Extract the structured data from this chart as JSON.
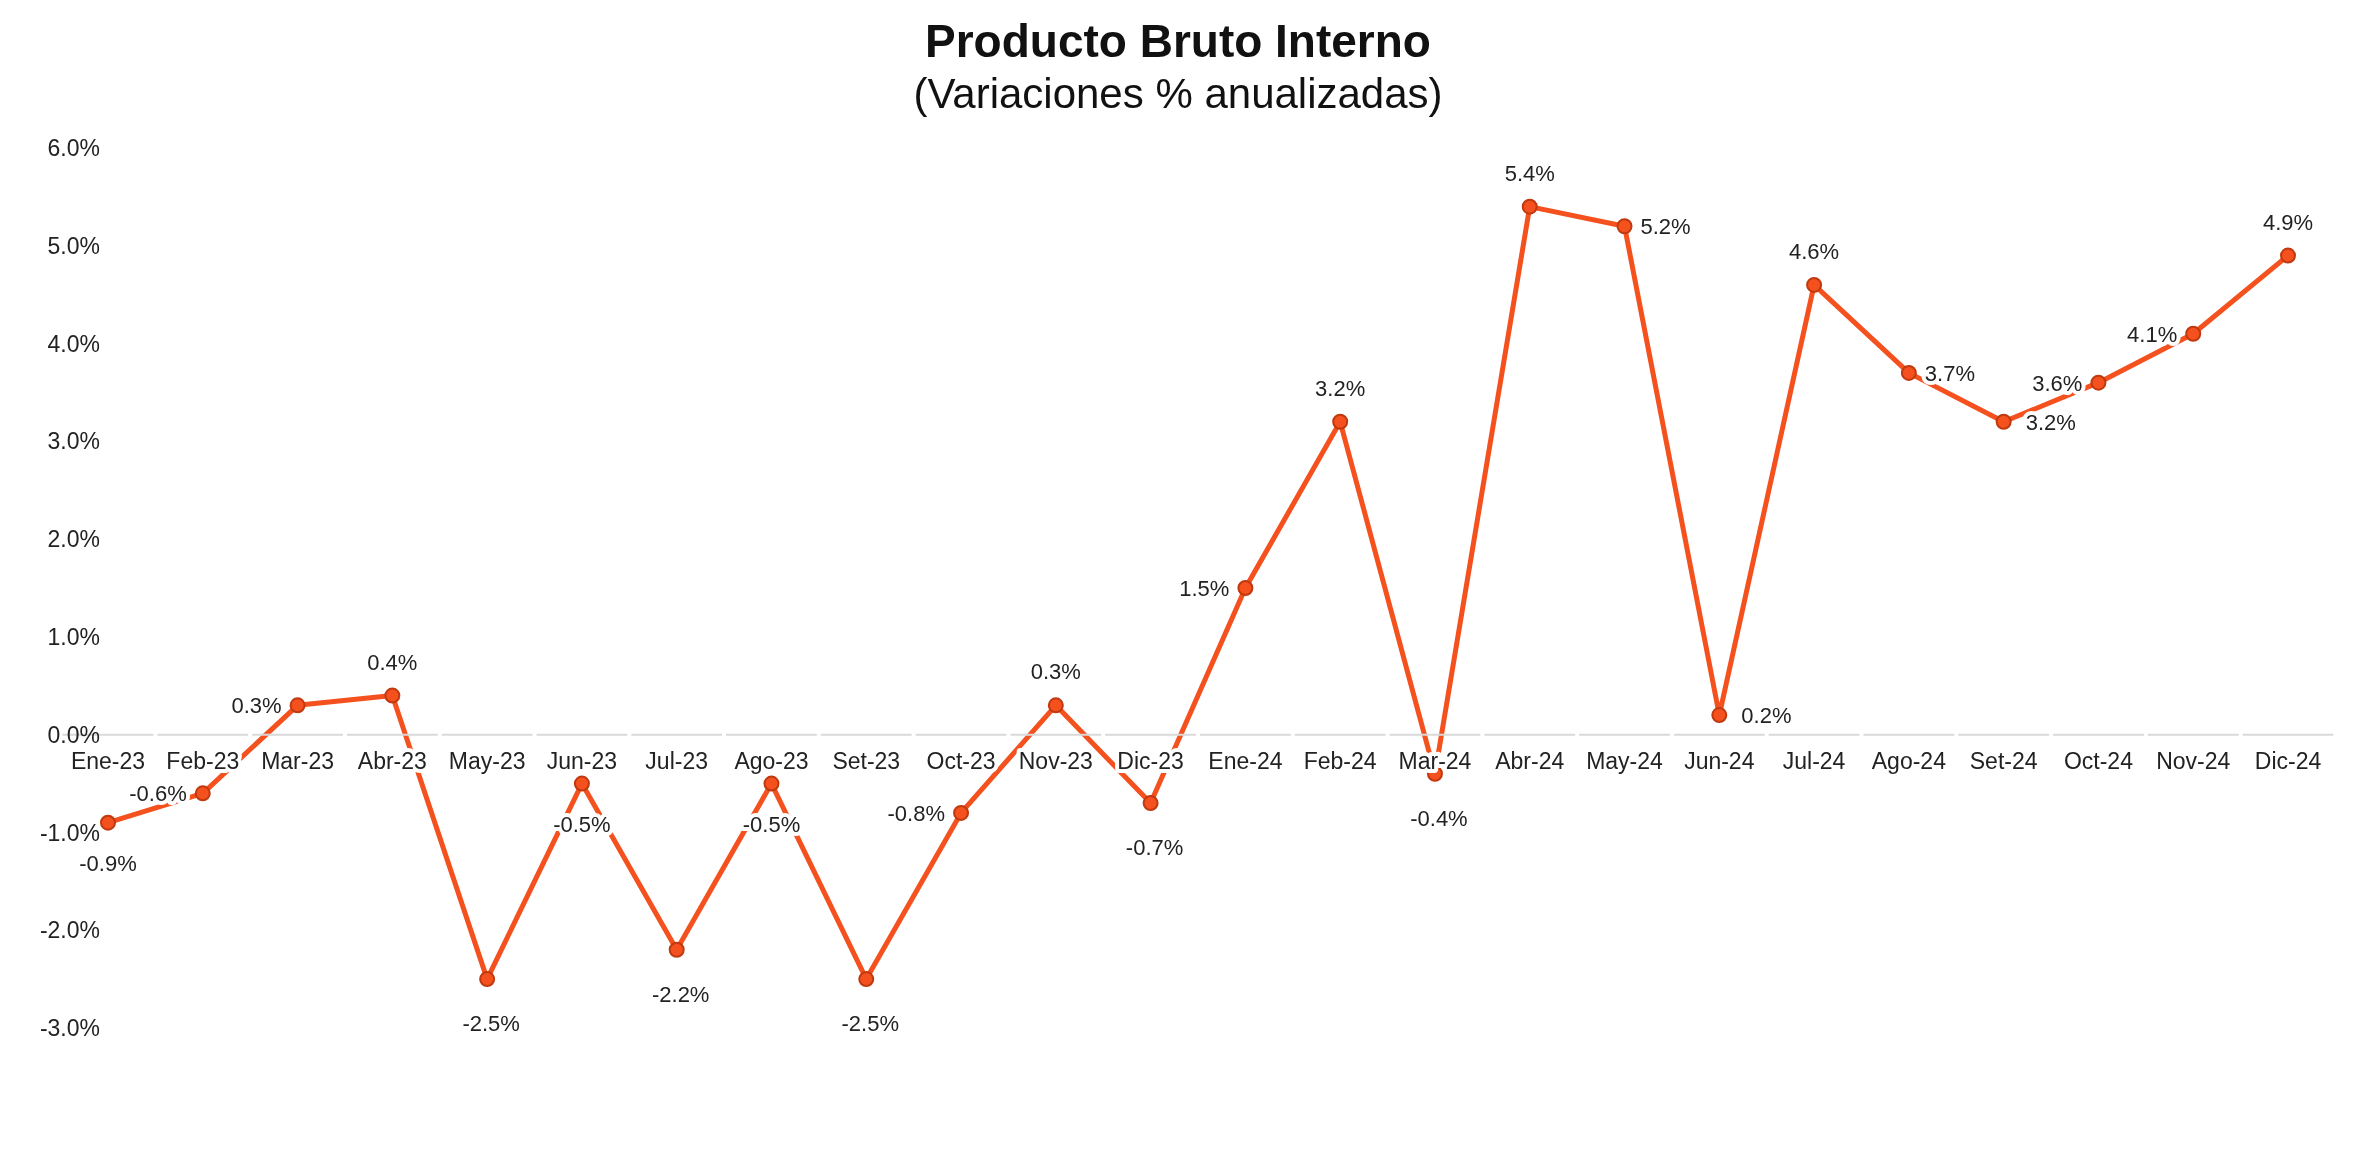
{
  "chart_data": {
    "type": "line",
    "title": "Producto Bruto Interno",
    "subtitle": "(Variaciones % anualizadas)",
    "categories": [
      "Ene-23",
      "Feb-23",
      "Mar-23",
      "Abr-23",
      "May-23",
      "Jun-23",
      "Jul-23",
      "Ago-23",
      "Set-23",
      "Oct-23",
      "Nov-23",
      "Dic-23",
      "Ene-24",
      "Feb-24",
      "Mar-24",
      "Abr-24",
      "May-24",
      "Jun-24",
      "Jul-24",
      "Ago-24",
      "Set-24",
      "Oct-24",
      "Nov-24",
      "Dic-24"
    ],
    "series": [
      {
        "color": "#f4511e",
        "values": [
          -0.9,
          -0.6,
          0.3,
          0.4,
          -2.5,
          -0.5,
          -2.2,
          -0.5,
          -2.5,
          -0.8,
          0.3,
          -0.7,
          1.5,
          3.2,
          -0.4,
          5.4,
          5.2,
          0.2,
          4.6,
          3.7,
          3.2,
          3.6,
          4.1,
          4.9
        ],
        "value_labels": [
          "-0.9%",
          "-0.6%",
          "0.3%",
          "0.4%",
          "-2.5%",
          "-0.5%",
          "-2.2%",
          "-0.5%",
          "-2.5%",
          "-0.8%",
          "0.3%",
          "-0.7%",
          "1.5%",
          "3.2%",
          "-0.4%",
          "5.4%",
          "5.2%",
          "0.2%",
          "4.6%",
          "3.7%",
          "3.2%",
          "3.6%",
          "4.1%",
          "4.9%"
        ]
      }
    ],
    "ylim": [
      -3,
      6
    ],
    "yticks": [
      {
        "value": -3,
        "label": "-3.0%"
      },
      {
        "value": -2,
        "label": "-2.0%"
      },
      {
        "value": -1,
        "label": "-1.0%"
      },
      {
        "value": 0,
        "label": "0.0%"
      },
      {
        "value": 1,
        "label": "1.0%"
      },
      {
        "value": 2,
        "label": "2.0%"
      },
      {
        "value": 3,
        "label": "3.0%"
      },
      {
        "value": 4,
        "label": "4.0%"
      },
      {
        "value": 5,
        "label": "5.0%"
      },
      {
        "value": 6,
        "label": "6.0%"
      }
    ],
    "marker": "circle",
    "line_style": "solid"
  }
}
